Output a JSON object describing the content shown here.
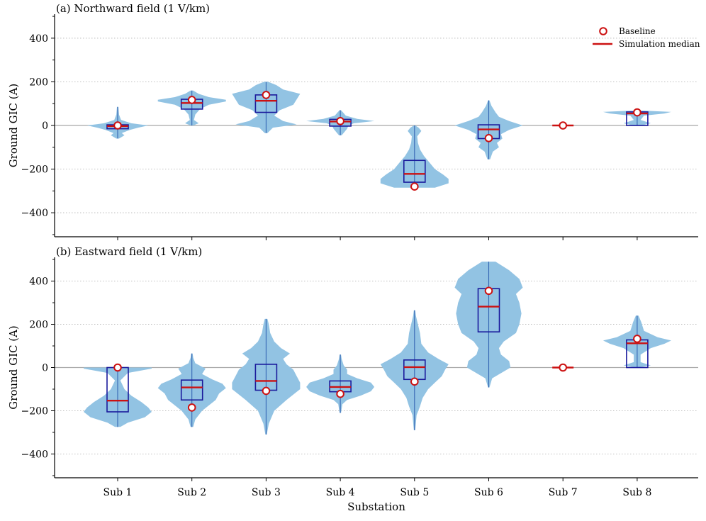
{
  "chart_data": {
    "type": "violin",
    "xlabel": "Substation",
    "categories": [
      "Sub 1",
      "Sub 2",
      "Sub 3",
      "Sub 4",
      "Sub 5",
      "Sub 6",
      "Sub 7",
      "Sub 8"
    ],
    "legend": {
      "position": "top-right",
      "baseline_label": "Baseline",
      "median_label": "Simulation median"
    },
    "colors": {
      "violin": "#92c3e3",
      "violin_line": "#3465b3",
      "box": "#1a1a9c",
      "median": "#cc1111",
      "baseline_edge": "#cc1111",
      "grid": "#b8b8b8",
      "zero_line": "#a8a8a8"
    },
    "panels": [
      {
        "title": "(a) Northward field (1 V/km)",
        "ylabel": "Ground GIC (A)",
        "ylim": [
          -510,
          510
        ],
        "yticks": [
          -400,
          -200,
          0,
          200,
          400
        ],
        "series": [
          {
            "category": "Sub 1",
            "whisker": [
              -60,
              85
            ],
            "q1": -15,
            "median": -3,
            "q3": 3,
            "baseline": 0,
            "density": [
              [
                -60,
                0.02
              ],
              [
                -45,
                0.1
              ],
              [
                -35,
                0.06
              ],
              [
                -20,
                0.18
              ],
              [
                -10,
                0.3
              ],
              [
                0,
                0.45
              ],
              [
                10,
                0.2
              ],
              [
                25,
                0.05
              ],
              [
                50,
                0.02
              ],
              [
                85,
                0.01
              ]
            ]
          },
          {
            "category": "Sub 2",
            "whisker": [
              0,
              160
            ],
            "q1": 75,
            "median": 103,
            "q3": 120,
            "baseline": 117,
            "density": [
              [
                0,
                0.02
              ],
              [
                10,
                0.1
              ],
              [
                25,
                0.03
              ],
              [
                50,
                0.05
              ],
              [
                75,
                0.12
              ],
              [
                95,
                0.25
              ],
              [
                110,
                0.5
              ],
              [
                118,
                0.5
              ],
              [
                130,
                0.25
              ],
              [
                145,
                0.1
              ],
              [
                160,
                0.02
              ]
            ]
          },
          {
            "category": "Sub 3",
            "whisker": [
              -35,
              200
            ],
            "q1": 60,
            "median": 113,
            "q3": 140,
            "baseline": 140,
            "density": [
              [
                -35,
                0.02
              ],
              [
                -10,
                0.1
              ],
              [
                5,
                0.45
              ],
              [
                20,
                0.25
              ],
              [
                45,
                0.12
              ],
              [
                70,
                0.2
              ],
              [
                95,
                0.4
              ],
              [
                120,
                0.45
              ],
              [
                145,
                0.5
              ],
              [
                165,
                0.25
              ],
              [
                185,
                0.15
              ],
              [
                200,
                0.03
              ]
            ]
          },
          {
            "category": "Sub 4",
            "whisker": [
              -45,
              70
            ],
            "q1": -3,
            "median": 18,
            "q3": 28,
            "baseline": 20,
            "density": [
              [
                -45,
                0.02
              ],
              [
                -30,
                0.06
              ],
              [
                -15,
                0.1
              ],
              [
                0,
                0.12
              ],
              [
                10,
                0.2
              ],
              [
                20,
                0.5
              ],
              [
                30,
                0.25
              ],
              [
                45,
                0.08
              ],
              [
                60,
                0.04
              ],
              [
                70,
                0.01
              ]
            ]
          },
          {
            "category": "Sub 5",
            "whisker": [
              -280,
              0
            ],
            "q1": -260,
            "median": -222,
            "q3": -160,
            "baseline": -280,
            "density": [
              [
                -285,
                0.3
              ],
              [
                -265,
                0.5
              ],
              [
                -245,
                0.5
              ],
              [
                -225,
                0.42
              ],
              [
                -200,
                0.3
              ],
              [
                -170,
                0.22
              ],
              [
                -140,
                0.14
              ],
              [
                -110,
                0.08
              ],
              [
                -80,
                0.05
              ],
              [
                -50,
                0.04
              ],
              [
                -25,
                0.1
              ],
              [
                -10,
                0.06
              ],
              [
                0,
                0.01
              ]
            ]
          },
          {
            "category": "Sub 6",
            "whisker": [
              -155,
              115
            ],
            "q1": -60,
            "median": -18,
            "q3": 3,
            "baseline": -58,
            "density": [
              [
                -155,
                0.02
              ],
              [
                -120,
                0.06
              ],
              [
                -100,
                0.15
              ],
              [
                -80,
                0.12
              ],
              [
                -60,
                0.2
              ],
              [
                -40,
                0.18
              ],
              [
                -20,
                0.3
              ],
              [
                0,
                0.5
              ],
              [
                20,
                0.3
              ],
              [
                40,
                0.15
              ],
              [
                60,
                0.1
              ],
              [
                90,
                0.04
              ],
              [
                115,
                0.01
              ]
            ]
          },
          {
            "category": "Sub 7",
            "whisker": [
              0,
              0
            ],
            "q1": 0,
            "median": 0,
            "q3": 0,
            "baseline": 0,
            "density": []
          },
          {
            "category": "Sub 8",
            "whisker": [
              0,
              68
            ],
            "q1": 0,
            "median": 55,
            "q3": 62,
            "baseline": 60,
            "density": [
              [
                0,
                0.06
              ],
              [
                10,
                0.2
              ],
              [
                25,
                0.05
              ],
              [
                45,
                0.1
              ],
              [
                55,
                0.4
              ],
              [
                62,
                0.5
              ],
              [
                68,
                0.1
              ]
            ]
          }
        ]
      },
      {
        "title": "(b) Eastward field (1 V/km)",
        "ylabel": "Ground GIC (A)",
        "ylim": [
          -510,
          510
        ],
        "yticks": [
          -400,
          -200,
          0,
          200,
          400
        ],
        "series": [
          {
            "category": "Sub 1",
            "whisker": [
              -275,
              0
            ],
            "q1": -205,
            "median": -153,
            "q3": 0,
            "baseline": 0,
            "density": [
              [
                -275,
                0.04
              ],
              [
                -255,
                0.15
              ],
              [
                -230,
                0.4
              ],
              [
                -205,
                0.5
              ],
              [
                -185,
                0.45
              ],
              [
                -160,
                0.35
              ],
              [
                -130,
                0.2
              ],
              [
                -100,
                0.1
              ],
              [
                -60,
                0.04
              ],
              [
                -25,
                0.15
              ],
              [
                -5,
                0.5
              ],
              [
                0,
                0.5
              ]
            ]
          },
          {
            "category": "Sub 2",
            "whisker": [
              -275,
              65
            ],
            "q1": -150,
            "median": -92,
            "q3": -58,
            "baseline": -185,
            "density": [
              [
                -275,
                0.02
              ],
              [
                -240,
                0.05
              ],
              [
                -200,
                0.15
              ],
              [
                -175,
                0.25
              ],
              [
                -150,
                0.35
              ],
              [
                -120,
                0.4
              ],
              [
                -95,
                0.5
              ],
              [
                -75,
                0.45
              ],
              [
                -55,
                0.3
              ],
              [
                -30,
                0.15
              ],
              [
                -5,
                0.2
              ],
              [
                20,
                0.05
              ],
              [
                45,
                0.02
              ],
              [
                65,
                0.01
              ]
            ]
          },
          {
            "category": "Sub 3",
            "whisker": [
              -310,
              225
            ],
            "q1": -105,
            "median": -62,
            "q3": 15,
            "baseline": -108,
            "density": [
              [
                -310,
                0.01
              ],
              [
                -260,
                0.04
              ],
              [
                -200,
                0.12
              ],
              [
                -150,
                0.3
              ],
              [
                -100,
                0.5
              ],
              [
                -70,
                0.5
              ],
              [
                -40,
                0.45
              ],
              [
                -10,
                0.4
              ],
              [
                15,
                0.3
              ],
              [
                40,
                0.25
              ],
              [
                65,
                0.35
              ],
              [
                90,
                0.22
              ],
              [
                120,
                0.12
              ],
              [
                160,
                0.06
              ],
              [
                200,
                0.04
              ],
              [
                225,
                0.02
              ]
            ]
          },
          {
            "category": "Sub 4",
            "whisker": [
              -210,
              60
            ],
            "q1": -112,
            "median": -90,
            "q3": -62,
            "baseline": -122,
            "density": [
              [
                -210,
                0.01
              ],
              [
                -170,
                0.03
              ],
              [
                -150,
                0.1
              ],
              [
                -130,
                0.3
              ],
              [
                -110,
                0.45
              ],
              [
                -90,
                0.5
              ],
              [
                -70,
                0.45
              ],
              [
                -50,
                0.25
              ],
              [
                -30,
                0.1
              ],
              [
                -10,
                0.1
              ],
              [
                10,
                0.05
              ],
              [
                40,
                0.02
              ],
              [
                60,
                0.01
              ]
            ]
          },
          {
            "category": "Sub 5",
            "whisker": [
              -290,
              265
            ],
            "q1": -55,
            "median": 2,
            "q3": 35,
            "baseline": -65,
            "density": [
              [
                -290,
                0.01
              ],
              [
                -220,
                0.03
              ],
              [
                -180,
                0.08
              ],
              [
                -140,
                0.12
              ],
              [
                -100,
                0.2
              ],
              [
                -70,
                0.3
              ],
              [
                -40,
                0.4
              ],
              [
                -10,
                0.45
              ],
              [
                15,
                0.5
              ],
              [
                40,
                0.35
              ],
              [
                70,
                0.2
              ],
              [
                110,
                0.1
              ],
              [
                160,
                0.08
              ],
              [
                200,
                0.05
              ],
              [
                240,
                0.02
              ],
              [
                265,
                0.01
              ]
            ]
          },
          {
            "category": "Sub 6",
            "whisker": [
              -92,
              490
            ],
            "q1": 165,
            "median": 282,
            "q3": 365,
            "baseline": 355,
            "density": [
              [
                -92,
                0.01
              ],
              [
                -50,
                0.05
              ],
              [
                0,
                0.32
              ],
              [
                30,
                0.3
              ],
              [
                60,
                0.18
              ],
              [
                90,
                0.15
              ],
              [
                120,
                0.22
              ],
              [
                160,
                0.4
              ],
              [
                200,
                0.45
              ],
              [
                250,
                0.48
              ],
              [
                300,
                0.45
              ],
              [
                340,
                0.4
              ],
              [
                370,
                0.5
              ],
              [
                410,
                0.45
              ],
              [
                450,
                0.3
              ],
              [
                490,
                0.1
              ]
            ]
          },
          {
            "category": "Sub 7",
            "whisker": [
              0,
              0
            ],
            "q1": 0,
            "median": 0,
            "q3": 0,
            "baseline": 0,
            "density": []
          },
          {
            "category": "Sub 8",
            "whisker": [
              0,
              240
            ],
            "q1": 0,
            "median": 112,
            "q3": 128,
            "baseline": 133,
            "density": [
              [
                0,
                0.02
              ],
              [
                10,
                0.2
              ],
              [
                25,
                0.05
              ],
              [
                60,
                0.05
              ],
              [
                90,
                0.2
              ],
              [
                110,
                0.4
              ],
              [
                125,
                0.5
              ],
              [
                140,
                0.3
              ],
              [
                170,
                0.1
              ],
              [
                210,
                0.06
              ],
              [
                240,
                0.02
              ]
            ]
          }
        ]
      }
    ]
  }
}
